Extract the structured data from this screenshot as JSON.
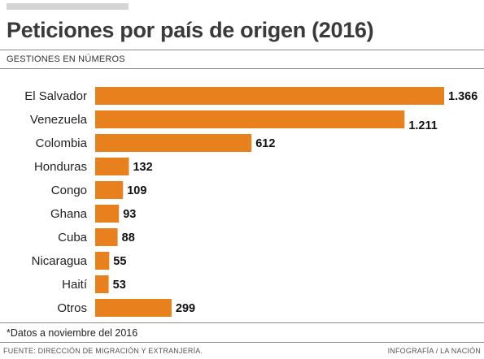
{
  "header": {
    "title": "Peticiones por país de origen (2016)",
    "subtitle": "GESTIONES EN NÚMEROS"
  },
  "footnote": "*Datos a noviembre del 2016",
  "footer": {
    "source": "FUENTE: DIRECCIÓN DE MIGRACIÓN Y EXTRANJERÍA.",
    "credit": "INFOGRAFÍA / LA NACIÓN"
  },
  "colors": {
    "bar": "#e8801e",
    "title": "#3a3a3a"
  },
  "chart_data": {
    "type": "bar",
    "orientation": "horizontal",
    "title": "Peticiones por país de origen (2016)",
    "categories": [
      "El Salvador",
      "Venezuela",
      "Colombia",
      "Honduras",
      "Congo",
      "Ghana",
      "Cuba",
      "Nicaragua",
      "Haití",
      "Otros"
    ],
    "values": [
      1366,
      1211,
      612,
      132,
      109,
      93,
      88,
      55,
      53,
      299
    ],
    "value_labels": [
      "1.366",
      "1.211",
      "612",
      "132",
      "109",
      "93",
      "88",
      "55",
      "53",
      "299"
    ],
    "xlabel": "",
    "ylabel": "",
    "grid": false,
    "legend": "none"
  }
}
